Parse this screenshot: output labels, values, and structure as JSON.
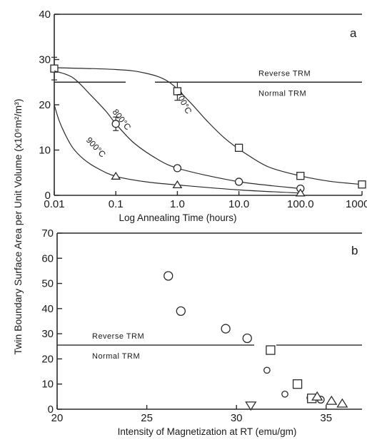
{
  "y_axis_label": "Twin Boundary Surface Area per Unit Volume (x10⁶m²/m³)",
  "chart_data": [
    {
      "panel": "a",
      "type": "line",
      "xlabel": "Log Annealing Time (hours)",
      "xscale": "log",
      "xlim": [
        0.01,
        1000
      ],
      "ylim": [
        0,
        40
      ],
      "x_ticks": [
        "0.01",
        "0.1",
        "1.0",
        "10.0",
        "100.0",
        "1000.0"
      ],
      "y_ticks": [
        "0",
        "10",
        "20",
        "30",
        "40"
      ],
      "grid": false,
      "series": [
        {
          "name": "700°C",
          "marker": "square",
          "x": [
            0.01,
            1.0,
            10,
            100,
            1000
          ],
          "y": [
            28,
            23,
            10.5,
            4.3,
            2.4
          ],
          "err": [
            2.5,
            2,
            0,
            0,
            0
          ],
          "curve_x": [
            0.01,
            0.1,
            0.3,
            0.7,
            1.5,
            3,
            6,
            12,
            30,
            100,
            300,
            1000
          ],
          "curve_y": [
            28.2,
            27.8,
            27,
            25.2,
            21,
            16.5,
            12.5,
            9.5,
            6.3,
            4.3,
            3.1,
            2.4
          ]
        },
        {
          "name": "800°C",
          "marker": "circle",
          "x": [
            0.1,
            1.0,
            10,
            100
          ],
          "y": [
            15.8,
            6,
            3,
            1.5
          ],
          "err": [
            1.5,
            0,
            0,
            0
          ],
          "curve_x": [
            0.01,
            0.02,
            0.04,
            0.07,
            0.1,
            0.2,
            0.5,
            1,
            3,
            10,
            30,
            100
          ],
          "curve_y": [
            27.5,
            26,
            22,
            18.5,
            15.8,
            11.5,
            7.8,
            6,
            4.4,
            3,
            2.2,
            1.5
          ]
        },
        {
          "name": "900°C",
          "marker": "triangle",
          "x": [
            0.1,
            1.0,
            100
          ],
          "y": [
            4.2,
            2.3,
            0.5
          ],
          "err": [
            0,
            0,
            0
          ],
          "curve_x": [
            0.01,
            0.012,
            0.015,
            0.02,
            0.03,
            0.05,
            0.1,
            0.3,
            1,
            10,
            100
          ],
          "curve_y": [
            20,
            16.5,
            13.5,
            10.5,
            8,
            6,
            4.2,
            3,
            2.3,
            1.2,
            0.5
          ]
        }
      ],
      "reference_line": {
        "y": 25,
        "label_above": "Reverse TRM",
        "label_below": "Normal TRM"
      }
    },
    {
      "panel": "b",
      "type": "scatter",
      "xlabel": "Intensity of Magnetization at RT (emu/gm)",
      "xlim": [
        20,
        37
      ],
      "ylim": [
        0,
        70
      ],
      "x_ticks": [
        "20",
        "25",
        "30",
        "35"
      ],
      "y_ticks": [
        "0",
        "10",
        "20",
        "30",
        "40",
        "50",
        "60",
        "70"
      ],
      "grid": false,
      "series": [
        {
          "marker": "circle",
          "x": [
            26.2,
            26.9,
            29.4,
            30.6,
            31.7,
            32.7,
            34.1,
            34.7
          ],
          "y": [
            53,
            39,
            32,
            28.2,
            15.5,
            6,
            4.5,
            3.8
          ],
          "sizes": [
            1,
            1,
            1,
            1,
            0.7,
            0.7,
            0.7,
            0.8
          ]
        },
        {
          "marker": "square",
          "x": [
            31.9,
            33.4,
            34.2
          ],
          "y": [
            23.5,
            10,
            4.3
          ]
        },
        {
          "marker": "triangle",
          "x": [
            34.5,
            35.3,
            35.9
          ],
          "y": [
            5,
            3.3,
            2.2
          ]
        },
        {
          "marker": "triangle-down",
          "x": [
            30.8
          ],
          "y": [
            1.5
          ]
        }
      ],
      "reference_line": {
        "y": 25.5,
        "label_above": "Reverse TRM",
        "label_below": "Normal TRM"
      }
    }
  ]
}
